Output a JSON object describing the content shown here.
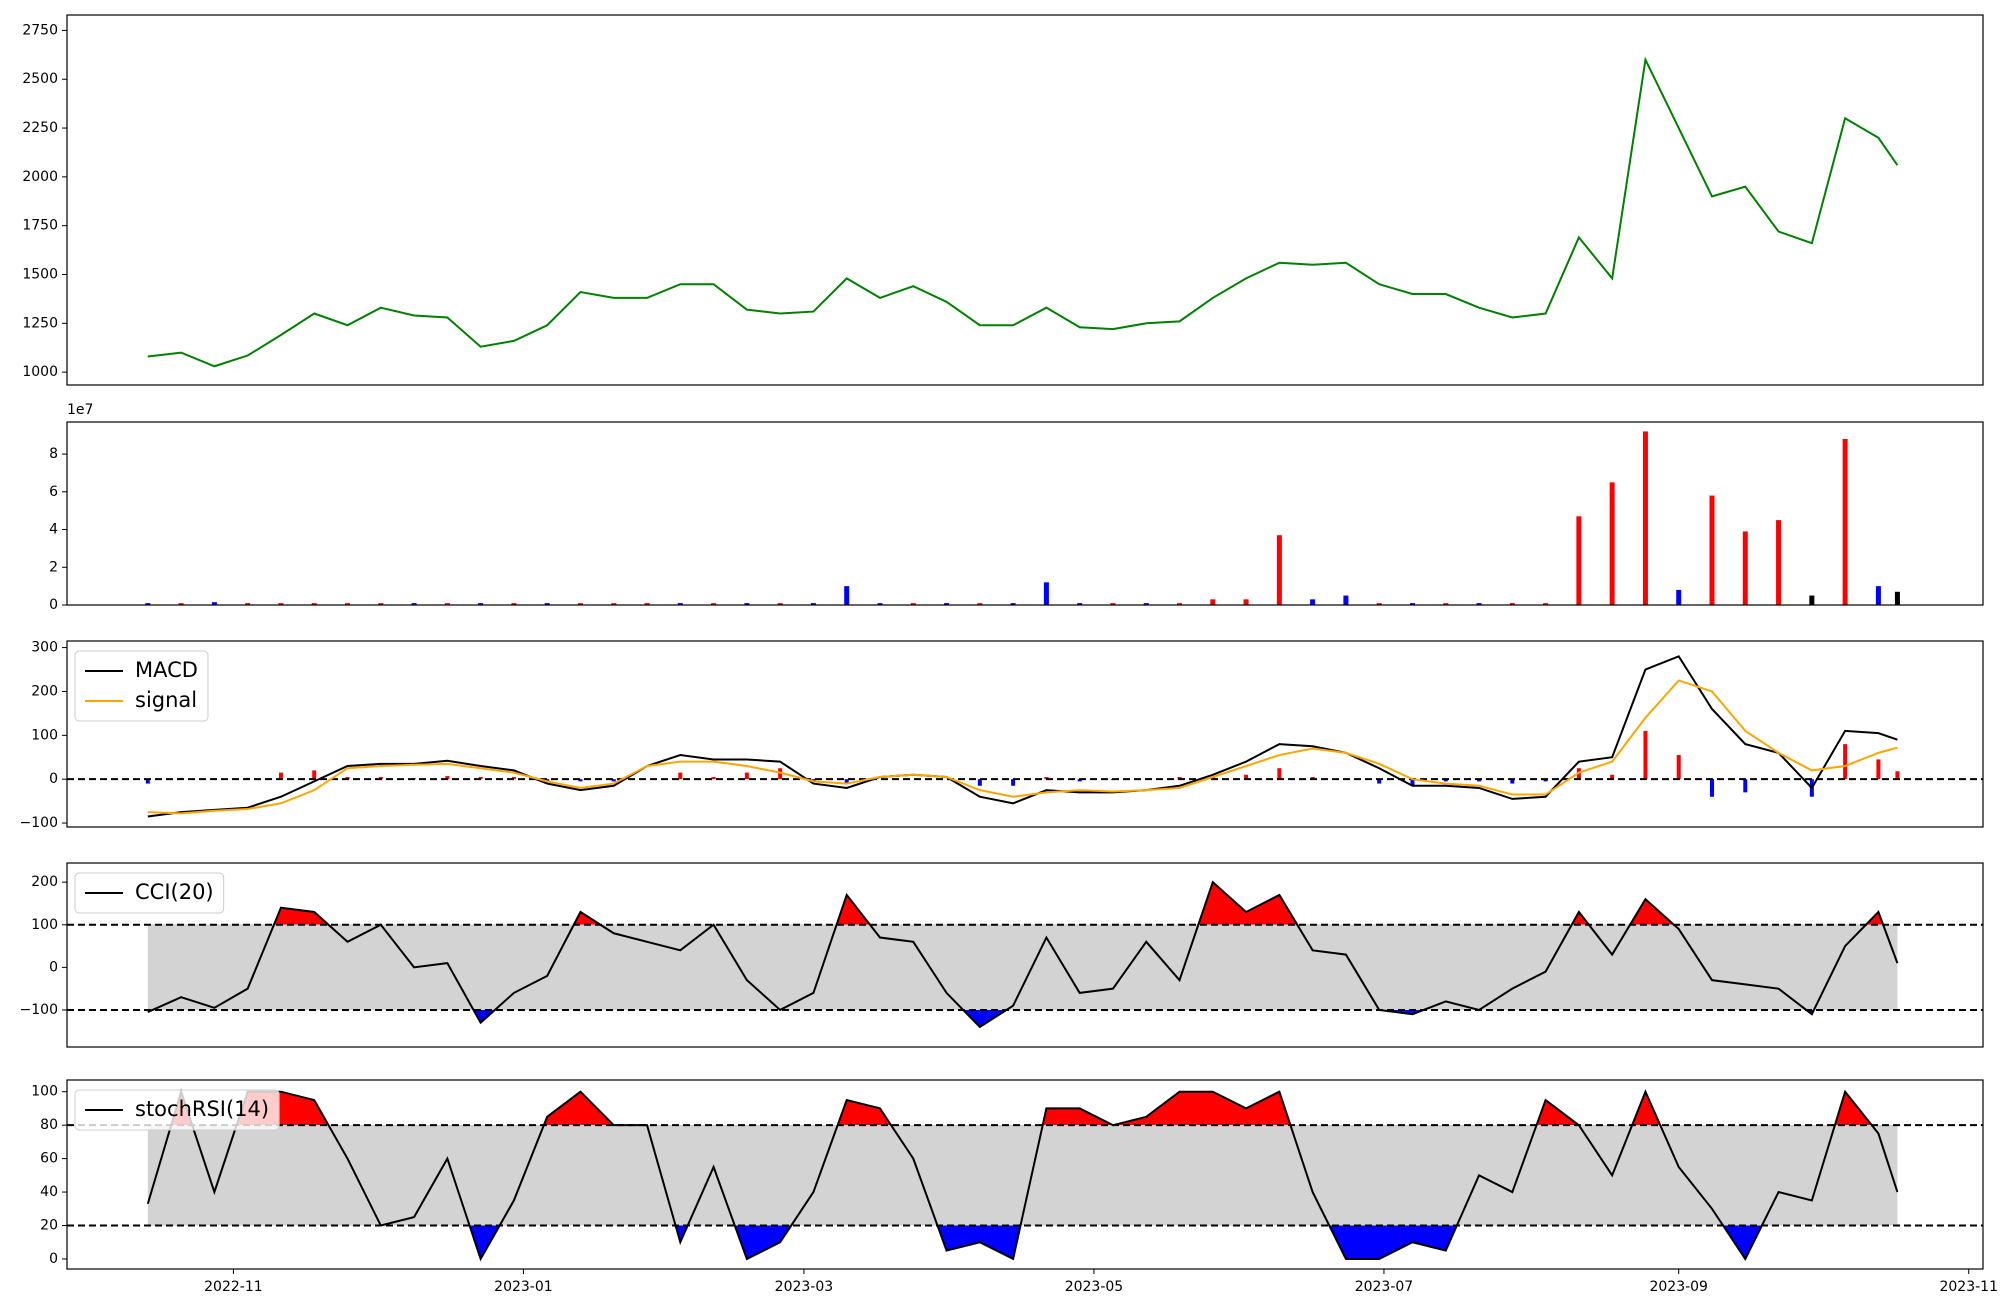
{
  "chart_data": [
    {
      "type": "line",
      "color": "green",
      "x": [
        19279,
        19286,
        19293,
        19300,
        19307,
        19314,
        19321,
        19328,
        19335,
        19342,
        19349,
        19356,
        19363,
        19370,
        19377,
        19384,
        19391,
        19398,
        19405,
        19412,
        19419,
        19426,
        19433,
        19440,
        19447,
        19454,
        19461,
        19468,
        19475,
        19482,
        19489,
        19496,
        19503,
        19510,
        19517,
        19524,
        19531,
        19538,
        19545,
        19552,
        19559,
        19566,
        19573,
        19580,
        19587,
        19594,
        19601,
        19608,
        19615,
        19622,
        19629,
        19636,
        19643,
        19647
      ],
      "values": [
        1080,
        1100,
        1030,
        1085,
        1190,
        1300,
        1240,
        1330,
        1290,
        1280,
        1130,
        1160,
        1240,
        1410,
        1380,
        1380,
        1450,
        1450,
        1320,
        1300,
        1310,
        1480,
        1380,
        1440,
        1360,
        1240,
        1240,
        1330,
        1230,
        1220,
        1250,
        1260,
        1380,
        1480,
        1560,
        1550,
        1560,
        1450,
        1400,
        1400,
        1330,
        1280,
        1300,
        1690,
        1480,
        2600,
        2250,
        1900,
        1950,
        1720,
        1660,
        2300,
        2200,
        2060
      ],
      "xlim": [
        19262,
        19665
      ],
      "ylim": [
        934,
        2829
      ],
      "yticks": [
        1000,
        1250,
        1500,
        1750,
        2000,
        2250,
        2500,
        2750
      ]
    },
    {
      "type": "bar",
      "offset_text": "1e7",
      "x": [
        19279,
        19286,
        19293,
        19300,
        19307,
        19314,
        19321,
        19328,
        19335,
        19342,
        19349,
        19356,
        19363,
        19370,
        19377,
        19384,
        19391,
        19398,
        19405,
        19412,
        19419,
        19426,
        19433,
        19440,
        19447,
        19454,
        19461,
        19468,
        19475,
        19482,
        19489,
        19496,
        19503,
        19510,
        19517,
        19524,
        19531,
        19538,
        19545,
        19552,
        19559,
        19566,
        19573,
        19580,
        19587,
        19594,
        19601,
        19608,
        19615,
        19622,
        19629,
        19636,
        19643,
        19647
      ],
      "values": [
        0.1,
        0.1,
        0.15,
        0.1,
        0.1,
        0.1,
        0.1,
        0.1,
        0.1,
        0.1,
        0.1,
        0.1,
        0.1,
        0.1,
        0.1,
        0.1,
        0.1,
        0.1,
        0.1,
        0.1,
        0.1,
        1.0,
        0.1,
        0.1,
        0.1,
        0.1,
        0.1,
        1.2,
        0.1,
        0.1,
        0.1,
        0.1,
        0.3,
        0.3,
        3.7,
        0.3,
        0.5,
        0.1,
        0.1,
        0.1,
        0.1,
        0.1,
        0.1,
        4.7,
        6.5,
        9.2,
        0.8,
        5.8,
        3.9,
        4.5,
        0.5,
        8.8,
        1.0,
        0.7
      ],
      "colors": [
        "blue",
        "red",
        "blue",
        "red",
        "red",
        "red",
        "red",
        "red",
        "blue",
        "red",
        "blue",
        "red",
        "blue",
        "red",
        "red",
        "red",
        "blue",
        "red",
        "blue",
        "red",
        "blue",
        "blue",
        "blue",
        "red",
        "blue",
        "red",
        "blue",
        "blue",
        "blue",
        "red",
        "blue",
        "red",
        "red",
        "red",
        "red",
        "blue",
        "blue",
        "red",
        "blue",
        "red",
        "blue",
        "red",
        "red",
        "red",
        "red",
        "red",
        "blue",
        "red",
        "red",
        "red",
        "black",
        "red",
        "blue",
        "black"
      ],
      "xlim": [
        19262,
        19665
      ],
      "ylim": [
        0,
        9.7
      ],
      "yticks": [
        0,
        2,
        4,
        6,
        8
      ]
    },
    {
      "type": "line",
      "legend": "upper left",
      "hline": 0,
      "x": [
        19279,
        19286,
        19293,
        19300,
        19307,
        19314,
        19321,
        19328,
        19335,
        19342,
        19349,
        19356,
        19363,
        19370,
        19377,
        19384,
        19391,
        19398,
        19405,
        19412,
        19419,
        19426,
        19433,
        19440,
        19447,
        19454,
        19461,
        19468,
        19475,
        19482,
        19489,
        19496,
        19503,
        19510,
        19517,
        19524,
        19531,
        19538,
        19545,
        19552,
        19559,
        19566,
        19573,
        19580,
        19587,
        19594,
        19601,
        19608,
        19615,
        19622,
        19629,
        19636,
        19643,
        19647
      ],
      "series": [
        {
          "name": "MACD",
          "color": "black",
          "values": [
            -85,
            -75,
            -70,
            -65,
            -40,
            -5,
            30,
            35,
            35,
            42,
            30,
            20,
            -10,
            -25,
            -15,
            30,
            55,
            45,
            45,
            40,
            -10,
            -20,
            5,
            10,
            5,
            -40,
            -55,
            -25,
            -30,
            -30,
            -25,
            -15,
            10,
            40,
            80,
            75,
            60,
            25,
            -15,
            -15,
            -20,
            -45,
            -40,
            40,
            50,
            250,
            280,
            160,
            80,
            60,
            -20,
            110,
            105,
            90
          ]
        },
        {
          "name": "signal",
          "color": "orange",
          "values": [
            -75,
            -78,
            -72,
            -68,
            -55,
            -25,
            25,
            30,
            33,
            35,
            25,
            15,
            -5,
            -20,
            -10,
            30,
            40,
            40,
            30,
            15,
            -5,
            -10,
            5,
            10,
            5,
            -25,
            -40,
            -30,
            -25,
            -28,
            -25,
            -20,
            5,
            30,
            55,
            70,
            60,
            35,
            0,
            -10,
            -15,
            -35,
            -35,
            15,
            40,
            140,
            225,
            200,
            110,
            60,
            20,
            30,
            60,
            72
          ]
        }
      ],
      "histogram": {
        "up_color": "red",
        "down_color": "blue",
        "values": [
          -10,
          3,
          2,
          3,
          15,
          20,
          5,
          5,
          2,
          7,
          5,
          5,
          -5,
          -5,
          -5,
          0,
          15,
          5,
          15,
          25,
          -5,
          -10,
          0,
          0,
          0,
          -15,
          -15,
          5,
          -5,
          -2,
          0,
          5,
          5,
          10,
          25,
          5,
          0,
          -10,
          -15,
          -5,
          -5,
          -10,
          -5,
          25,
          10,
          110,
          55,
          -40,
          -30,
          0,
          -40,
          80,
          45,
          18
        ]
      },
      "xlim": [
        19262,
        19665
      ],
      "ylim": [
        -109,
        315
      ],
      "yticks": [
        {
          "value": -100,
          "label": "−100"
        },
        0,
        100,
        200,
        300
      ]
    },
    {
      "type": "line",
      "legend": "upper left",
      "upper": 100,
      "lower": -100,
      "band_color": "lightgray",
      "upper_fill": "red",
      "lower_fill": "blue",
      "x": [
        19279,
        19286,
        19293,
        19300,
        19307,
        19314,
        19321,
        19328,
        19335,
        19342,
        19349,
        19356,
        19363,
        19370,
        19377,
        19384,
        19391,
        19398,
        19405,
        19412,
        19419,
        19426,
        19433,
        19440,
        19447,
        19454,
        19461,
        19468,
        19475,
        19482,
        19489,
        19496,
        19503,
        19510,
        19517,
        19524,
        19531,
        19538,
        19545,
        19552,
        19559,
        19566,
        19573,
        19580,
        19587,
        19594,
        19601,
        19608,
        19615,
        19622,
        19629,
        19636,
        19643,
        19647
      ],
      "series": [
        {
          "name": "CCI(20)",
          "color": "black",
          "values": [
            -105,
            -70,
            -95,
            -50,
            140,
            130,
            60,
            100,
            0,
            10,
            -130,
            -60,
            -20,
            130,
            80,
            60,
            40,
            100,
            -30,
            -100,
            -60,
            170,
            70,
            60,
            -60,
            -140,
            -90,
            70,
            -60,
            -50,
            60,
            -30,
            200,
            130,
            170,
            40,
            30,
            -100,
            -110,
            -80,
            -100,
            -50,
            -10,
            130,
            30,
            160,
            90,
            -30,
            -40,
            -50,
            -110,
            50,
            130,
            10
          ]
        }
      ],
      "xlim": [
        19262,
        19665
      ],
      "ylim": [
        -187,
        245
      ],
      "yticks": [
        {
          "value": -100,
          "label": "−100"
        },
        0,
        100,
        200
      ]
    },
    {
      "type": "line",
      "legend": "upper left",
      "upper": 80,
      "lower": 20,
      "band_color": "lightgray",
      "upper_fill": "red",
      "lower_fill": "blue",
      "x": [
        19279,
        19286,
        19293,
        19300,
        19307,
        19314,
        19321,
        19328,
        19335,
        19342,
        19349,
        19356,
        19363,
        19370,
        19377,
        19384,
        19391,
        19398,
        19405,
        19412,
        19419,
        19426,
        19433,
        19440,
        19447,
        19454,
        19461,
        19468,
        19475,
        19482,
        19489,
        19496,
        19503,
        19510,
        19517,
        19524,
        19531,
        19538,
        19545,
        19552,
        19559,
        19566,
        19573,
        19580,
        19587,
        19594,
        19601,
        19608,
        19615,
        19622,
        19629,
        19636,
        19643,
        19647
      ],
      "series": [
        {
          "name": "stochRSI(14)",
          "color": "black",
          "values": [
            33,
            100,
            40,
            100,
            100,
            95,
            60,
            20,
            25,
            60,
            0,
            35,
            85,
            100,
            80,
            80,
            10,
            55,
            0,
            10,
            40,
            95,
            90,
            60,
            5,
            10,
            0,
            90,
            90,
            80,
            85,
            100,
            100,
            90,
            100,
            40,
            0,
            0,
            10,
            5,
            50,
            40,
            95,
            80,
            50,
            100,
            55,
            30,
            0,
            40,
            35,
            100,
            75,
            40
          ]
        }
      ],
      "xlim": [
        19262,
        19665
      ],
      "ylim": [
        -6,
        107
      ],
      "yticks": [
        0,
        20,
        40,
        60,
        80,
        100
      ],
      "xticks": [
        {
          "value": 19297,
          "label": "2022-11"
        },
        {
          "value": 19358,
          "label": "2023-01"
        },
        {
          "value": 19417,
          "label": "2023-03"
        },
        {
          "value": 19478,
          "label": "2023-05"
        },
        {
          "value": 19539,
          "label": "2023-07"
        },
        {
          "value": 19601,
          "label": "2023-09"
        },
        {
          "value": 19662,
          "label": "2023-11"
        }
      ]
    }
  ]
}
